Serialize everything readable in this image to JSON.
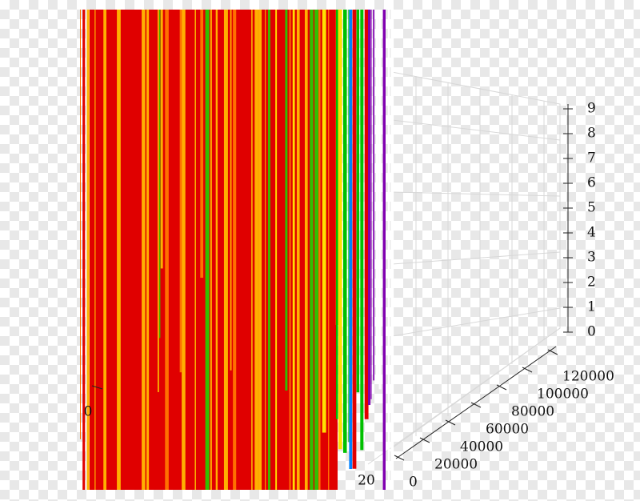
{
  "axes": {
    "z_ticks": [
      "0",
      "1",
      "2",
      "3",
      "4",
      "5",
      "6",
      "7",
      "8",
      "9"
    ],
    "y_ticks": [
      "0",
      "20000",
      "40000",
      "60000",
      "80000",
      "100000",
      "120000"
    ],
    "x_ticks": [
      "0",
      "20"
    ]
  }
}
